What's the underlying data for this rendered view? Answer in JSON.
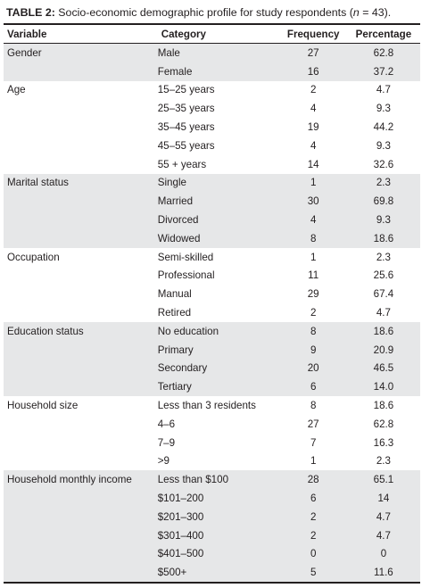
{
  "caption": {
    "label": "TABLE 2:",
    "text": " Socio-economic demographic profile for study respondents (",
    "n_symbol": "n",
    "n_value": " = 43)."
  },
  "table": {
    "headers": [
      "Variable",
      "Category",
      "Frequency",
      "Percentage"
    ],
    "groups": [
      {
        "variable": "Gender",
        "rows": [
          {
            "category": "Male",
            "frequency": "27",
            "percentage": "62.8"
          },
          {
            "category": "Female",
            "frequency": "16",
            "percentage": "37.2"
          }
        ]
      },
      {
        "variable": "Age",
        "rows": [
          {
            "category": "15–25 years",
            "frequency": "2",
            "percentage": "4.7"
          },
          {
            "category": "25–35 years",
            "frequency": "4",
            "percentage": "9.3"
          },
          {
            "category": "35–45 years",
            "frequency": "19",
            "percentage": "44.2"
          },
          {
            "category": "45–55 years",
            "frequency": "4",
            "percentage": "9.3"
          },
          {
            "category": "55 + years",
            "frequency": "14",
            "percentage": "32.6"
          }
        ]
      },
      {
        "variable": "Marital status",
        "rows": [
          {
            "category": "Single",
            "frequency": "1",
            "percentage": "2.3"
          },
          {
            "category": "Married",
            "frequency": "30",
            "percentage": "69.8"
          },
          {
            "category": "Divorced",
            "frequency": "4",
            "percentage": "9.3"
          },
          {
            "category": "Widowed",
            "frequency": "8",
            "percentage": "18.6"
          }
        ]
      },
      {
        "variable": "Occupation",
        "rows": [
          {
            "category": "Semi-skilled",
            "frequency": "1",
            "percentage": "2.3"
          },
          {
            "category": "Professional",
            "frequency": "11",
            "percentage": "25.6"
          },
          {
            "category": "Manual",
            "frequency": "29",
            "percentage": "67.4"
          },
          {
            "category": "Retired",
            "frequency": "2",
            "percentage": "4.7"
          }
        ]
      },
      {
        "variable": "Education status",
        "rows": [
          {
            "category": "No education",
            "frequency": "8",
            "percentage": "18.6"
          },
          {
            "category": "Primary",
            "frequency": "9",
            "percentage": "20.9"
          },
          {
            "category": "Secondary",
            "frequency": "20",
            "percentage": "46.5"
          },
          {
            "category": "Tertiary",
            "frequency": "6",
            "percentage": "14.0"
          }
        ]
      },
      {
        "variable": "Household size",
        "rows": [
          {
            "category": "Less than 3 residents",
            "frequency": "8",
            "percentage": "18.6"
          },
          {
            "category": "4–6",
            "frequency": "27",
            "percentage": "62.8"
          },
          {
            "category": "7–9",
            "frequency": "7",
            "percentage": "16.3"
          },
          {
            "category": ">9",
            "frequency": "1",
            "percentage": "2.3"
          }
        ]
      },
      {
        "variable": "Household monthly income",
        "rows": [
          {
            "category": "Less than $100",
            "frequency": "28",
            "percentage": "65.1"
          },
          {
            "category": "$101–200",
            "frequency": "6",
            "percentage": "14"
          },
          {
            "category": "$201–300",
            "frequency": "2",
            "percentage": "4.7"
          },
          {
            "category": "$301–400",
            "frequency": "2",
            "percentage": "4.7"
          },
          {
            "category": "$401–500",
            "frequency": "0",
            "percentage": "0"
          },
          {
            "category": "$500+",
            "frequency": "5",
            "percentage": "11.6"
          }
        ]
      }
    ]
  },
  "colors": {
    "shade": "#e6e7e8",
    "text": "#231f20",
    "rule": "#231f20"
  }
}
